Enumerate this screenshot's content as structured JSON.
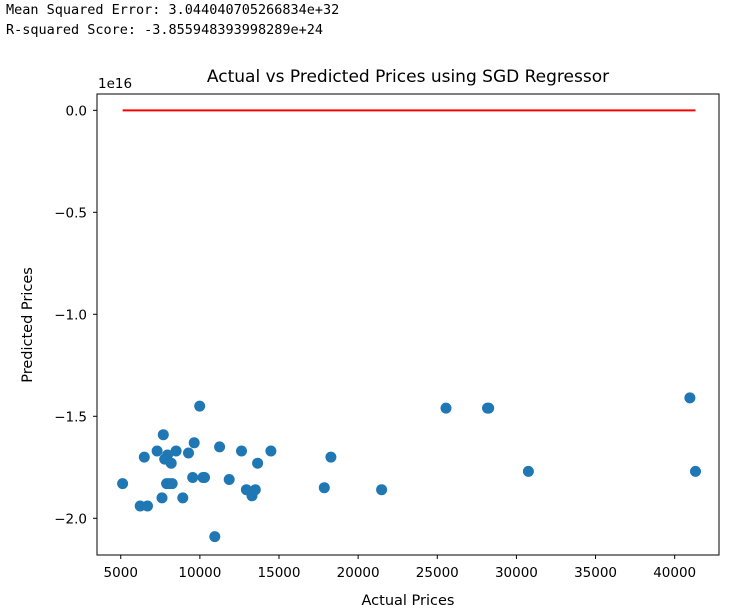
{
  "output": {
    "mse_line": "Mean Squared Error: 3.044040705266834e+32",
    "r2_line": "R-squared Score: -3.855948393998289e+24"
  },
  "chart_data": {
    "type": "scatter",
    "title": "Actual vs Predicted Prices using SGD Regressor",
    "xlabel": "Actual Prices",
    "ylabel": "Predicted Prices",
    "y_offset_label": "1e16",
    "xlim": [
      3500,
      42800
    ],
    "ylim": [
      -2.18,
      0.08
    ],
    "x_ticks": [
      5000,
      10000,
      15000,
      20000,
      25000,
      30000,
      35000,
      40000
    ],
    "x_tick_labels": [
      "5000",
      "10000",
      "15000",
      "20000",
      "25000",
      "30000",
      "35000",
      "40000"
    ],
    "y_ticks": [
      0.0,
      -0.5,
      -1.0,
      -1.5,
      -2.0
    ],
    "y_tick_labels": [
      "0.0",
      "−0.5",
      "−1.0",
      "−1.5",
      "−2.0"
    ],
    "grid": false,
    "scatter_color": "#1f77b4",
    "line_color": "#ff0000",
    "line": {
      "x": [
        5118,
        41315
      ],
      "y": [
        0.0,
        0.0
      ]
    },
    "points": [
      {
        "x": 5118,
        "y": -1.83
      },
      {
        "x": 6229,
        "y": -1.94
      },
      {
        "x": 6488,
        "y": -1.7
      },
      {
        "x": 6692,
        "y": -1.94
      },
      {
        "x": 7295,
        "y": -1.67
      },
      {
        "x": 7609,
        "y": -1.9
      },
      {
        "x": 7689,
        "y": -1.59
      },
      {
        "x": 7775,
        "y": -1.71
      },
      {
        "x": 7898,
        "y": -1.83
      },
      {
        "x": 7957,
        "y": -1.69
      },
      {
        "x": 8058,
        "y": -1.83
      },
      {
        "x": 8189,
        "y": -1.73
      },
      {
        "x": 8249,
        "y": -1.83
      },
      {
        "x": 8495,
        "y": -1.67
      },
      {
        "x": 8921,
        "y": -1.9
      },
      {
        "x": 9279,
        "y": -1.68
      },
      {
        "x": 9549,
        "y": -1.8
      },
      {
        "x": 9639,
        "y": -1.63
      },
      {
        "x": 9988,
        "y": -1.45
      },
      {
        "x": 10198,
        "y": -1.8
      },
      {
        "x": 10295,
        "y": -1.8
      },
      {
        "x": 10945,
        "y": -2.09
      },
      {
        "x": 11245,
        "y": -1.65
      },
      {
        "x": 11850,
        "y": -1.81
      },
      {
        "x": 12629,
        "y": -1.67
      },
      {
        "x": 12940,
        "y": -1.86
      },
      {
        "x": 13295,
        "y": -1.89
      },
      {
        "x": 13499,
        "y": -1.86
      },
      {
        "x": 13645,
        "y": -1.73
      },
      {
        "x": 14489,
        "y": -1.67
      },
      {
        "x": 17859,
        "y": -1.85
      },
      {
        "x": 18280,
        "y": -1.7
      },
      {
        "x": 21485,
        "y": -1.86
      },
      {
        "x": 25552,
        "y": -1.46
      },
      {
        "x": 28176,
        "y": -1.46
      },
      {
        "x": 28248,
        "y": -1.46
      },
      {
        "x": 30760,
        "y": -1.77
      },
      {
        "x": 40960,
        "y": -1.41
      },
      {
        "x": 41315,
        "y": -1.77
      }
    ]
  }
}
